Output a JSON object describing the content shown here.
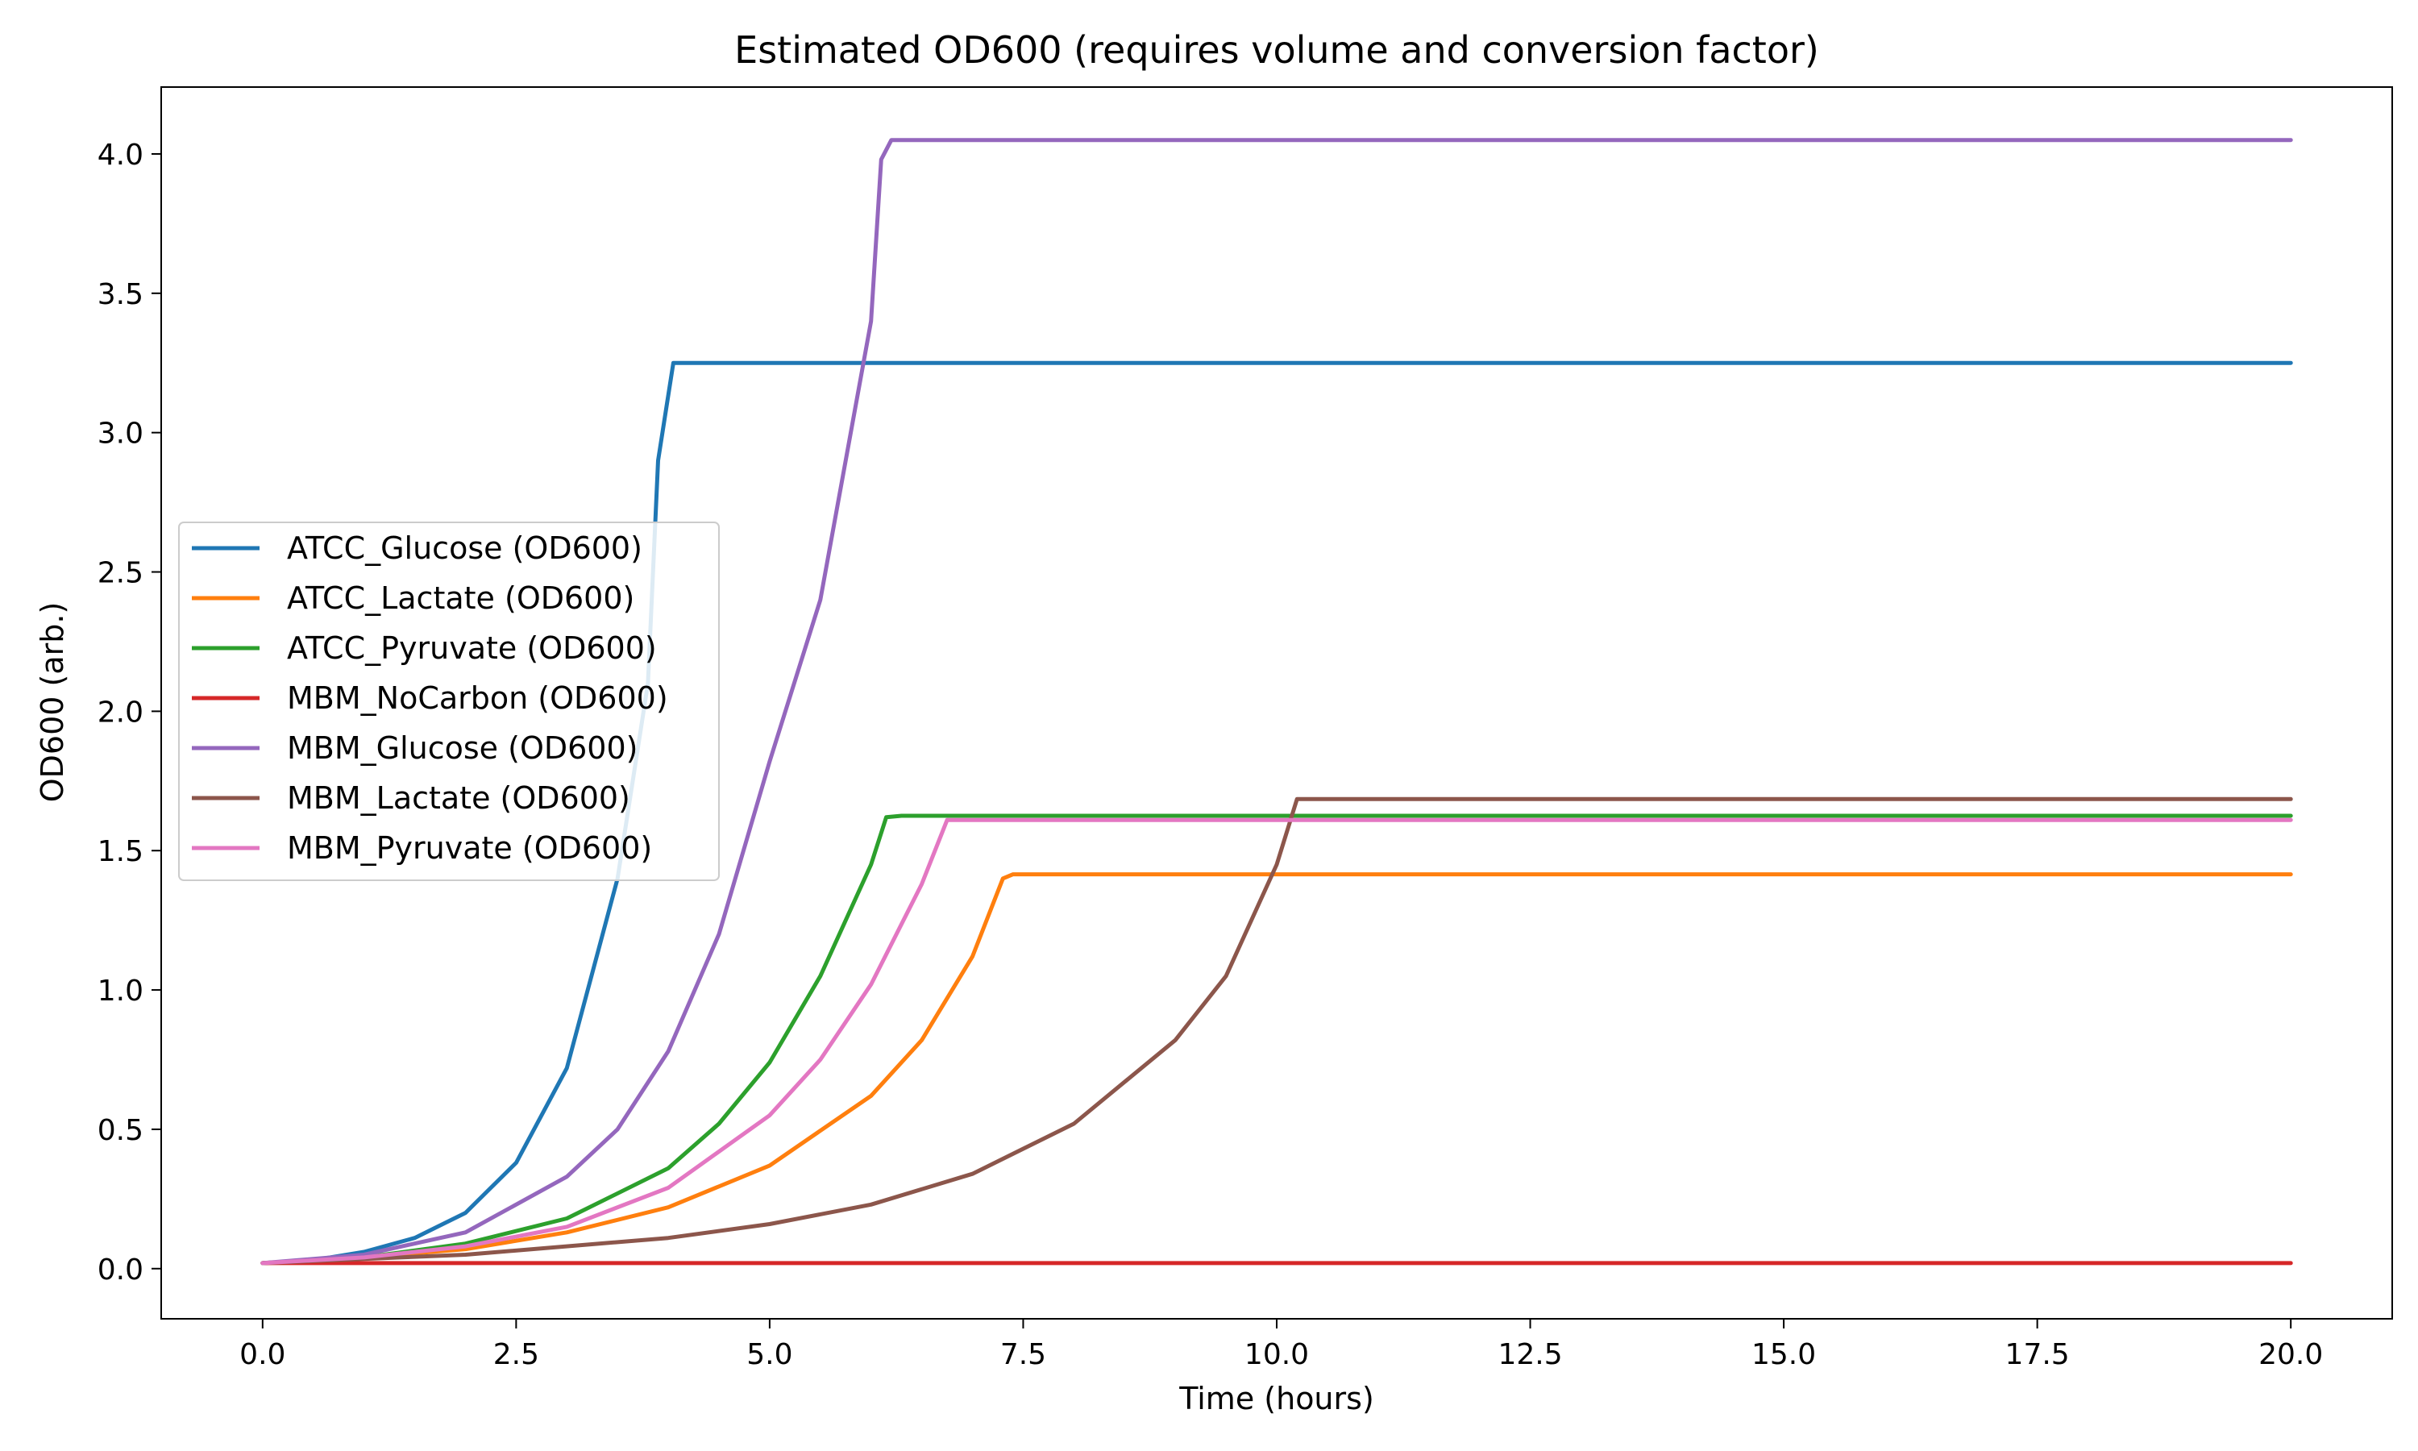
{
  "chart_data": {
    "type": "line",
    "title": "Estimated OD600 (requires volume and conversion factor)",
    "xlabel": "Time (hours)",
    "ylabel": "OD600 (arb.)",
    "xlim": [
      -1.0,
      21.0
    ],
    "ylim": [
      -0.18,
      4.24
    ],
    "xticks": [
      "0.0",
      "2.5",
      "5.0",
      "7.5",
      "10.0",
      "12.5",
      "15.0",
      "17.5",
      "20.0"
    ],
    "yticks": [
      "0.0",
      "0.5",
      "1.0",
      "1.5",
      "2.0",
      "2.5",
      "3.0",
      "3.5",
      "4.0"
    ],
    "grid": false,
    "legend_position": "center-left",
    "series": [
      {
        "name": "ATCC_Glucose (OD600)",
        "color": "#1f77b4",
        "points": [
          [
            0,
            0.02
          ],
          [
            0.5,
            0.03
          ],
          [
            1.0,
            0.06
          ],
          [
            1.5,
            0.11
          ],
          [
            2.0,
            0.2
          ],
          [
            2.5,
            0.38
          ],
          [
            3.0,
            0.72
          ],
          [
            3.5,
            1.4
          ],
          [
            3.8,
            2.1
          ],
          [
            3.9,
            2.9
          ],
          [
            4.05,
            3.25
          ],
          [
            20,
            3.25
          ]
        ]
      },
      {
        "name": "ATCC_Lactate (OD600)",
        "color": "#ff7f0e",
        "points": [
          [
            0,
            0.02
          ],
          [
            1,
            0.04
          ],
          [
            2,
            0.07
          ],
          [
            3,
            0.13
          ],
          [
            4,
            0.22
          ],
          [
            5,
            0.37
          ],
          [
            6,
            0.62
          ],
          [
            6.5,
            0.82
          ],
          [
            7.0,
            1.12
          ],
          [
            7.3,
            1.4
          ],
          [
            7.4,
            1.415
          ],
          [
            20,
            1.415
          ]
        ]
      },
      {
        "name": "ATCC_Pyruvate (OD600)",
        "color": "#2ca02c",
        "points": [
          [
            0,
            0.02
          ],
          [
            1,
            0.04
          ],
          [
            2,
            0.09
          ],
          [
            3,
            0.18
          ],
          [
            4,
            0.36
          ],
          [
            4.5,
            0.52
          ],
          [
            5,
            0.74
          ],
          [
            5.5,
            1.05
          ],
          [
            6.0,
            1.45
          ],
          [
            6.15,
            1.62
          ],
          [
            6.3,
            1.625
          ],
          [
            20,
            1.625
          ]
        ]
      },
      {
        "name": "MBM_NoCarbon (OD600)",
        "color": "#d62728",
        "points": [
          [
            0,
            0.02
          ],
          [
            20,
            0.02
          ]
        ]
      },
      {
        "name": "MBM_Glucose (OD600)",
        "color": "#9467bd",
        "points": [
          [
            0,
            0.02
          ],
          [
            1,
            0.05
          ],
          [
            2,
            0.13
          ],
          [
            3,
            0.33
          ],
          [
            3.5,
            0.5
          ],
          [
            4,
            0.78
          ],
          [
            4.5,
            1.2
          ],
          [
            5,
            1.82
          ],
          [
            5.5,
            2.4
          ],
          [
            6,
            3.4
          ],
          [
            6.1,
            3.98
          ],
          [
            6.2,
            4.05
          ],
          [
            20,
            4.05
          ]
        ]
      },
      {
        "name": "MBM_Lactate (OD600)",
        "color": "#8c564b",
        "points": [
          [
            0,
            0.02
          ],
          [
            2,
            0.05
          ],
          [
            4,
            0.11
          ],
          [
            5,
            0.16
          ],
          [
            6,
            0.23
          ],
          [
            7,
            0.34
          ],
          [
            8,
            0.52
          ],
          [
            9,
            0.82
          ],
          [
            9.5,
            1.05
          ],
          [
            10,
            1.45
          ],
          [
            10.2,
            1.685
          ],
          [
            20,
            1.685
          ]
        ]
      },
      {
        "name": "MBM_Pyruvate (OD600)",
        "color": "#e377c2",
        "points": [
          [
            0,
            0.02
          ],
          [
            1,
            0.04
          ],
          [
            2,
            0.08
          ],
          [
            3,
            0.15
          ],
          [
            4,
            0.29
          ],
          [
            5,
            0.55
          ],
          [
            5.5,
            0.75
          ],
          [
            6,
            1.02
          ],
          [
            6.5,
            1.38
          ],
          [
            6.75,
            1.61
          ],
          [
            20,
            1.61
          ]
        ]
      }
    ]
  }
}
